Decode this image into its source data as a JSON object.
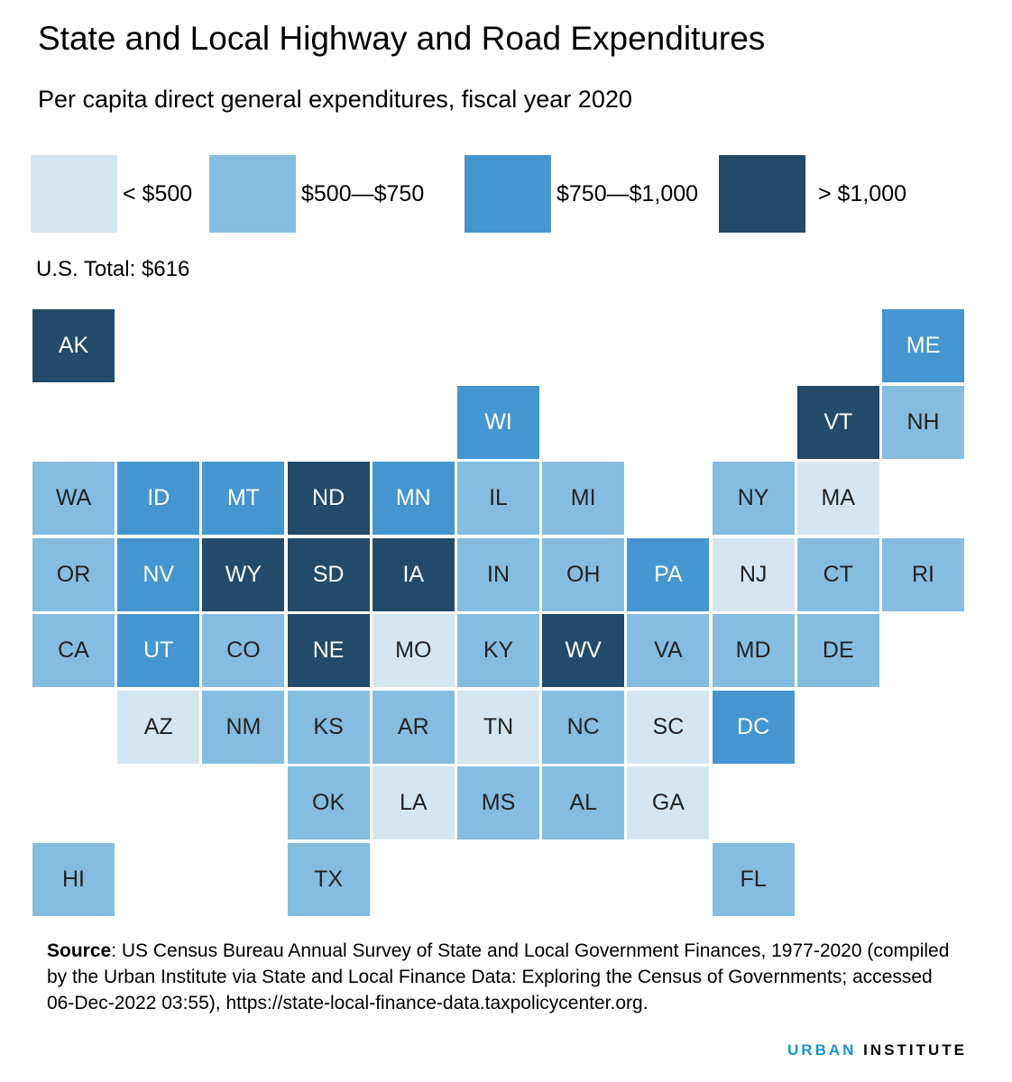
{
  "title": "State and Local Highway and Road Expenditures",
  "subtitle": "Per capita direct general expenditures, fiscal year 2020",
  "legend": [
    {
      "label": "< $500",
      "color": "#d6e6f0"
    },
    {
      "label": "$500—$750",
      "color": "#85bde0"
    },
    {
      "label": "$750—$1,000",
      "color": "#4596d0"
    },
    {
      "label": "> $1,000",
      "color": "#234a68"
    }
  ],
  "us_total": "U.S. Total: $616",
  "states": [
    {
      "abbr": "AK",
      "col": 0,
      "row": 0,
      "bin": 3
    },
    {
      "abbr": "ME",
      "col": 10,
      "row": 0,
      "bin": 2
    },
    {
      "abbr": "WI",
      "col": 5,
      "row": 1,
      "bin": 2
    },
    {
      "abbr": "VT",
      "col": 9,
      "row": 1,
      "bin": 3
    },
    {
      "abbr": "NH",
      "col": 10,
      "row": 1,
      "bin": 1
    },
    {
      "abbr": "WA",
      "col": 0,
      "row": 2,
      "bin": 1
    },
    {
      "abbr": "ID",
      "col": 1,
      "row": 2,
      "bin": 2
    },
    {
      "abbr": "MT",
      "col": 2,
      "row": 2,
      "bin": 2
    },
    {
      "abbr": "ND",
      "col": 3,
      "row": 2,
      "bin": 3
    },
    {
      "abbr": "MN",
      "col": 4,
      "row": 2,
      "bin": 2
    },
    {
      "abbr": "IL",
      "col": 5,
      "row": 2,
      "bin": 1
    },
    {
      "abbr": "MI",
      "col": 6,
      "row": 2,
      "bin": 1
    },
    {
      "abbr": "NY",
      "col": 8,
      "row": 2,
      "bin": 1
    },
    {
      "abbr": "MA",
      "col": 9,
      "row": 2,
      "bin": 0
    },
    {
      "abbr": "OR",
      "col": 0,
      "row": 3,
      "bin": 1
    },
    {
      "abbr": "NV",
      "col": 1,
      "row": 3,
      "bin": 2
    },
    {
      "abbr": "WY",
      "col": 2,
      "row": 3,
      "bin": 3
    },
    {
      "abbr": "SD",
      "col": 3,
      "row": 3,
      "bin": 3
    },
    {
      "abbr": "IA",
      "col": 4,
      "row": 3,
      "bin": 3
    },
    {
      "abbr": "IN",
      "col": 5,
      "row": 3,
      "bin": 1
    },
    {
      "abbr": "OH",
      "col": 6,
      "row": 3,
      "bin": 1
    },
    {
      "abbr": "PA",
      "col": 7,
      "row": 3,
      "bin": 2
    },
    {
      "abbr": "NJ",
      "col": 8,
      "row": 3,
      "bin": 0
    },
    {
      "abbr": "CT",
      "col": 9,
      "row": 3,
      "bin": 1
    },
    {
      "abbr": "RI",
      "col": 10,
      "row": 3,
      "bin": 1
    },
    {
      "abbr": "CA",
      "col": 0,
      "row": 4,
      "bin": 1
    },
    {
      "abbr": "UT",
      "col": 1,
      "row": 4,
      "bin": 2
    },
    {
      "abbr": "CO",
      "col": 2,
      "row": 4,
      "bin": 1
    },
    {
      "abbr": "NE",
      "col": 3,
      "row": 4,
      "bin": 3
    },
    {
      "abbr": "MO",
      "col": 4,
      "row": 4,
      "bin": 0
    },
    {
      "abbr": "KY",
      "col": 5,
      "row": 4,
      "bin": 1
    },
    {
      "abbr": "WV",
      "col": 6,
      "row": 4,
      "bin": 3
    },
    {
      "abbr": "VA",
      "col": 7,
      "row": 4,
      "bin": 1
    },
    {
      "abbr": "MD",
      "col": 8,
      "row": 4,
      "bin": 1
    },
    {
      "abbr": "DE",
      "col": 9,
      "row": 4,
      "bin": 1
    },
    {
      "abbr": "AZ",
      "col": 1,
      "row": 5,
      "bin": 0
    },
    {
      "abbr": "NM",
      "col": 2,
      "row": 5,
      "bin": 1
    },
    {
      "abbr": "KS",
      "col": 3,
      "row": 5,
      "bin": 1
    },
    {
      "abbr": "AR",
      "col": 4,
      "row": 5,
      "bin": 1
    },
    {
      "abbr": "TN",
      "col": 5,
      "row": 5,
      "bin": 0
    },
    {
      "abbr": "NC",
      "col": 6,
      "row": 5,
      "bin": 1
    },
    {
      "abbr": "SC",
      "col": 7,
      "row": 5,
      "bin": 0
    },
    {
      "abbr": "DC",
      "col": 8,
      "row": 5,
      "bin": 2
    },
    {
      "abbr": "OK",
      "col": 3,
      "row": 6,
      "bin": 1
    },
    {
      "abbr": "LA",
      "col": 4,
      "row": 6,
      "bin": 0
    },
    {
      "abbr": "MS",
      "col": 5,
      "row": 6,
      "bin": 1
    },
    {
      "abbr": "AL",
      "col": 6,
      "row": 6,
      "bin": 1
    },
    {
      "abbr": "GA",
      "col": 7,
      "row": 6,
      "bin": 0
    },
    {
      "abbr": "HI",
      "col": 0,
      "row": 7,
      "bin": 1
    },
    {
      "abbr": "TX",
      "col": 3,
      "row": 7,
      "bin": 1
    },
    {
      "abbr": "FL",
      "col": 8,
      "row": 7,
      "bin": 1
    }
  ],
  "source": {
    "label": "Source",
    "text": ": US Census Bureau Annual Survey of State and Local Government Finances, 1977-2020 (compiled by the Urban Institute via State and Local Finance Data: Exploring the Census of Governments; accessed 06-Dec-2022 03:55), https://state-local-finance-data.taxpolicycenter.org."
  },
  "brand": {
    "urban": "URBAN",
    "institute": "INSTITUTE"
  }
}
